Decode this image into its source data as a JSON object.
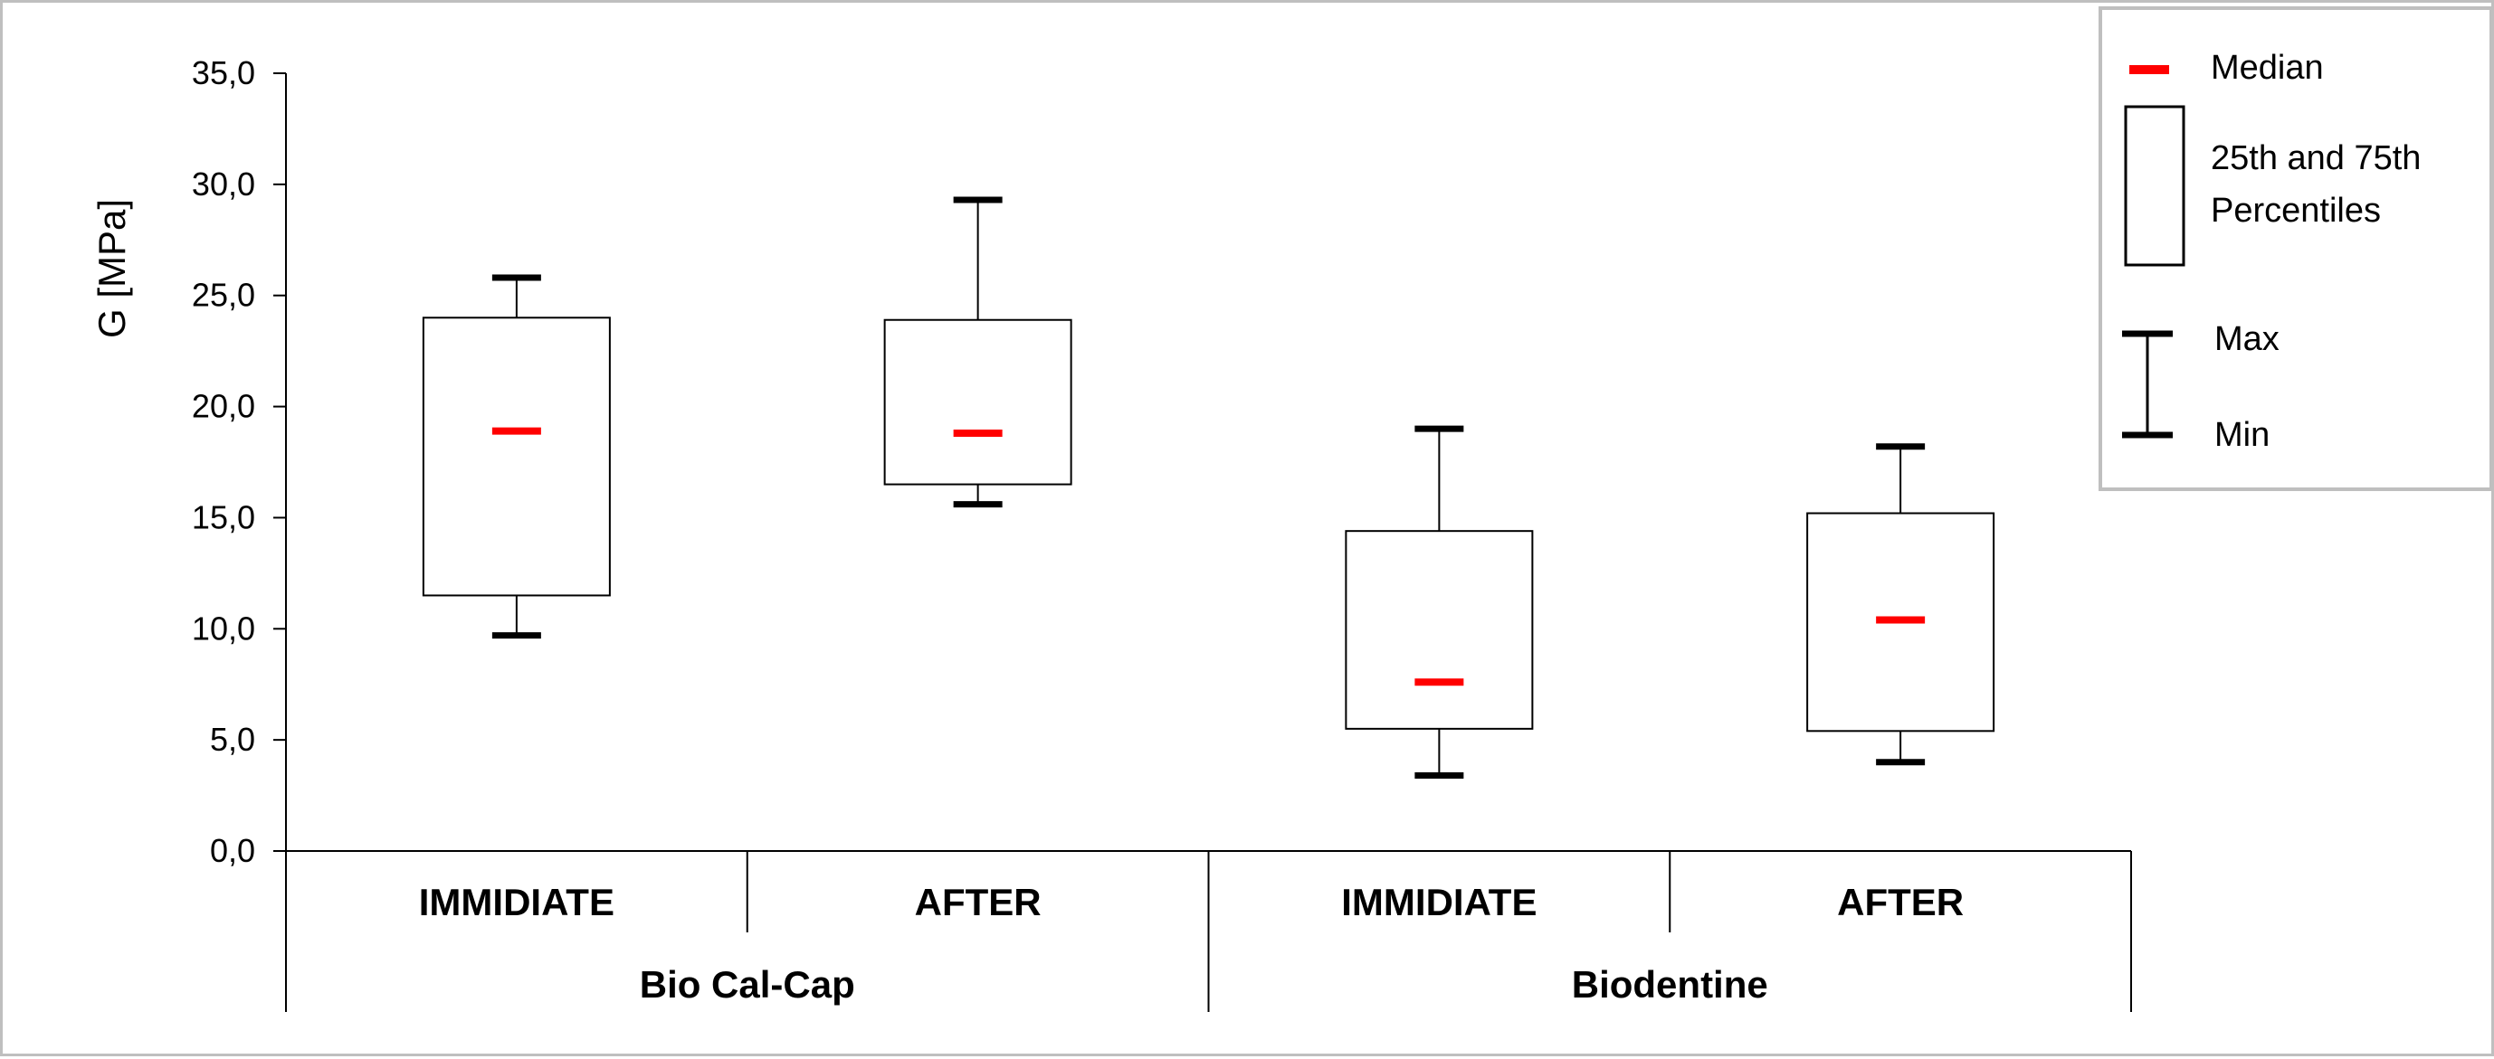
{
  "chart_data": {
    "type": "box",
    "ylabel": "G [MPa]",
    "ylim": [
      0,
      35
    ],
    "yticks": [
      "0,0",
      "5,0",
      "10,0",
      "15,0",
      "20,0",
      "25,0",
      "30,0",
      "35,0"
    ],
    "categories": [
      "IMMIDIATE",
      "AFTER",
      "IMMIDIATE",
      "AFTER"
    ],
    "groups": [
      "Bio Cal-Cap",
      "Biodentine"
    ],
    "boxes": [
      {
        "group": "Bio Cal-Cap",
        "category": "IMMIDIATE",
        "min": 9.7,
        "q1": 11.5,
        "median": 18.9,
        "q3": 24.0,
        "max": 25.8
      },
      {
        "group": "Bio Cal-Cap",
        "category": "AFTER",
        "min": 15.6,
        "q1": 16.5,
        "median": 18.8,
        "q3": 23.9,
        "max": 29.3
      },
      {
        "group": "Biodentine",
        "category": "IMMIDIATE",
        "min": 3.4,
        "q1": 5.5,
        "median": 7.6,
        "q3": 14.4,
        "max": 19.0
      },
      {
        "group": "Biodentine",
        "category": "AFTER",
        "min": 4.0,
        "q1": 5.4,
        "median": 10.4,
        "q3": 15.2,
        "max": 18.2
      }
    ],
    "legend": {
      "position": "top-right",
      "median_label": "Median",
      "box_label_line1": "25th and 75th",
      "box_label_line2": "Percentiles",
      "max_label": "Max",
      "min_label": "Min"
    },
    "colors": {
      "median": "#ff0000",
      "box_fill": "#ffffff",
      "line": "#000000",
      "frame": "#bfbfbf"
    }
  }
}
